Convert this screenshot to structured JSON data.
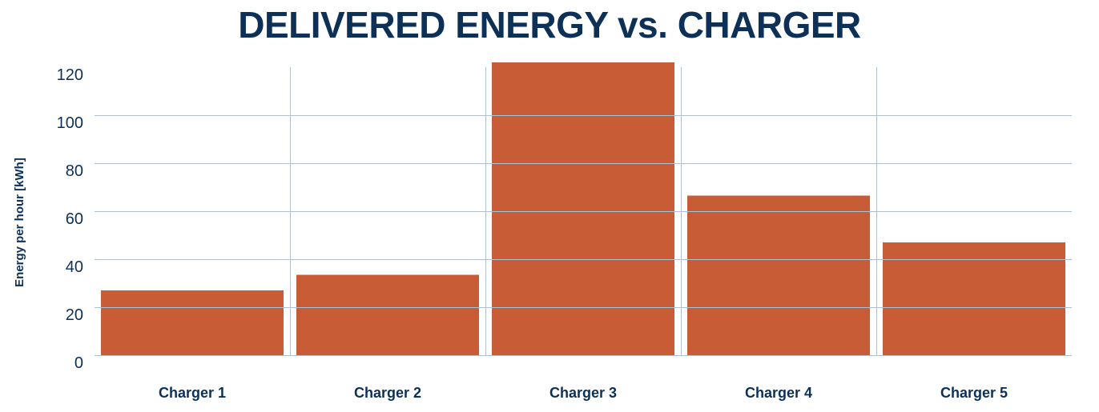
{
  "chart_data": {
    "type": "bar",
    "title": "DELIVERED ENERGY vs. CHARGER",
    "xlabel": "",
    "ylabel": "Energy per hour [kWh]",
    "categories": [
      "Charger 1",
      "Charger 2",
      "Charger 3",
      "Charger 4",
      "Charger 5"
    ],
    "values": [
      27,
      33.5,
      122,
      66.5,
      47
    ],
    "ylim": [
      0,
      120
    ],
    "yticks": [
      0,
      20,
      40,
      60,
      80,
      100,
      120
    ],
    "grid": true,
    "legend": "none",
    "colors": {
      "bar": "#c85c36",
      "text": "#0d3057",
      "grid": "#b4bfcc"
    }
  }
}
